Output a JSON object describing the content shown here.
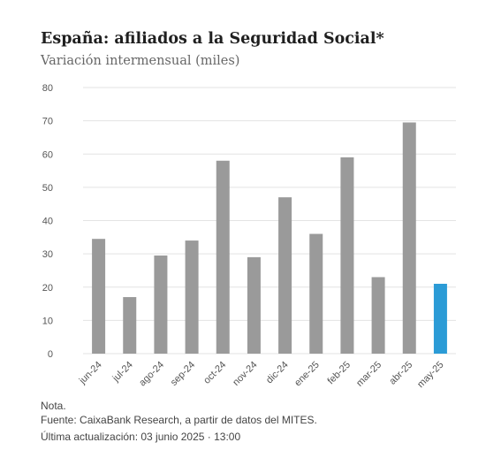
{
  "header": {
    "title": "España: afiliados a la Seguridad Social*",
    "subtitle": "Variación intermensual (miles)"
  },
  "footer": {
    "note": "Nota.",
    "source": "Fuente: CaixaBank Research, a partir de datos del MITES.",
    "updated": "Última actualización: 03 junio 2025 · 13:00"
  },
  "colors": {
    "bar": "#9a9a9a",
    "highlight": "#2b9bd6",
    "grid": "#e3e3e3"
  },
  "chart_data": {
    "type": "bar",
    "categories": [
      "jun-24",
      "jul-24",
      "ago-24",
      "sep-24",
      "oct-24",
      "nov-24",
      "dic-24",
      "ene-25",
      "feb-25",
      "mar-25",
      "abr-25",
      "may-25"
    ],
    "values": [
      34.5,
      17,
      29.5,
      34,
      58,
      29,
      47,
      36,
      59,
      23,
      69.5,
      21
    ],
    "highlight_index": 11,
    "title": "España: afiliados a la Seguridad Social*",
    "subtitle": "Variación intermensual (miles)",
    "xlabel": "",
    "ylabel": "",
    "ylim": [
      0,
      80
    ],
    "yticks": [
      0,
      10,
      20,
      30,
      40,
      50,
      60,
      70,
      80
    ],
    "grid": true,
    "legend": "none"
  }
}
